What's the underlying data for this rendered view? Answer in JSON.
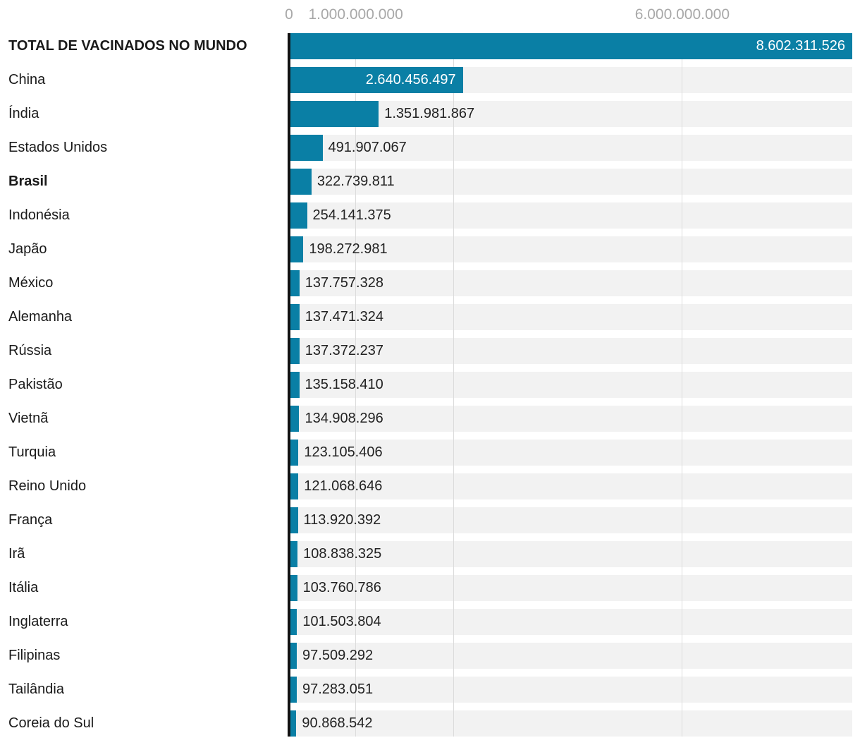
{
  "chart_data": {
    "type": "bar",
    "orientation": "horizontal",
    "title": "",
    "categories": [
      "TOTAL DE VACINADOS NO MUNDO",
      "China",
      "Índia",
      "Estados Unidos",
      "Brasil",
      "Indonésia",
      "Japão",
      "México",
      "Alemanha",
      "Rússia",
      "Pakistão",
      "Vietnã",
      "Turquia",
      "Reino Unido",
      "França",
      "Irã",
      "Itália",
      "Inglaterra",
      "Filipinas",
      "Tailândia",
      "Coreia do Sul"
    ],
    "values": [
      8602311526,
      2640456497,
      1351981867,
      491907067,
      322739811,
      254141375,
      198272981,
      137757328,
      137471324,
      137372237,
      135158410,
      134908296,
      123105406,
      121068646,
      113920392,
      108838325,
      103760786,
      101503804,
      97509292,
      97283051,
      90868542
    ],
    "value_labels": [
      "8.602.311.526",
      "2.640.456.497",
      "1.351.981.867",
      "491.907.067",
      "322.739.811",
      "254.141.375",
      "198.272.981",
      "137.757.328",
      "137.471.324",
      "137.372.237",
      "135.158.410",
      "134.908.296",
      "123.105.406",
      "121.068.646",
      "113.920.392",
      "108.838.325",
      "103.760.786",
      "101.503.804",
      "97.509.292",
      "97.283.051",
      "90.868.542"
    ],
    "bold_rows": [
      0,
      4
    ],
    "xlabel": "",
    "ylabel": "",
    "xlim": [
      0,
      8602311526
    ],
    "x_ticks": [
      {
        "label": "0",
        "value": 0
      },
      {
        "label": "1.000.000.000",
        "value": 1000000000
      },
      {
        "label": "6.000.000.000",
        "value": 6000000000
      }
    ],
    "gridline_values": [
      1000000000,
      2500000000,
      6000000000
    ],
    "legend": "none",
    "grid": "vertical-only",
    "colors": {
      "bar": "#0a7fa5",
      "row_background": "#f2f2f2",
      "gridline": "#dcdcdc",
      "axis_line": "#121212",
      "tick_label": "#a8a8a8",
      "category_label": "#1a1a1a",
      "value_label_outside": "#222222",
      "value_label_inside": "#ffffff"
    }
  }
}
